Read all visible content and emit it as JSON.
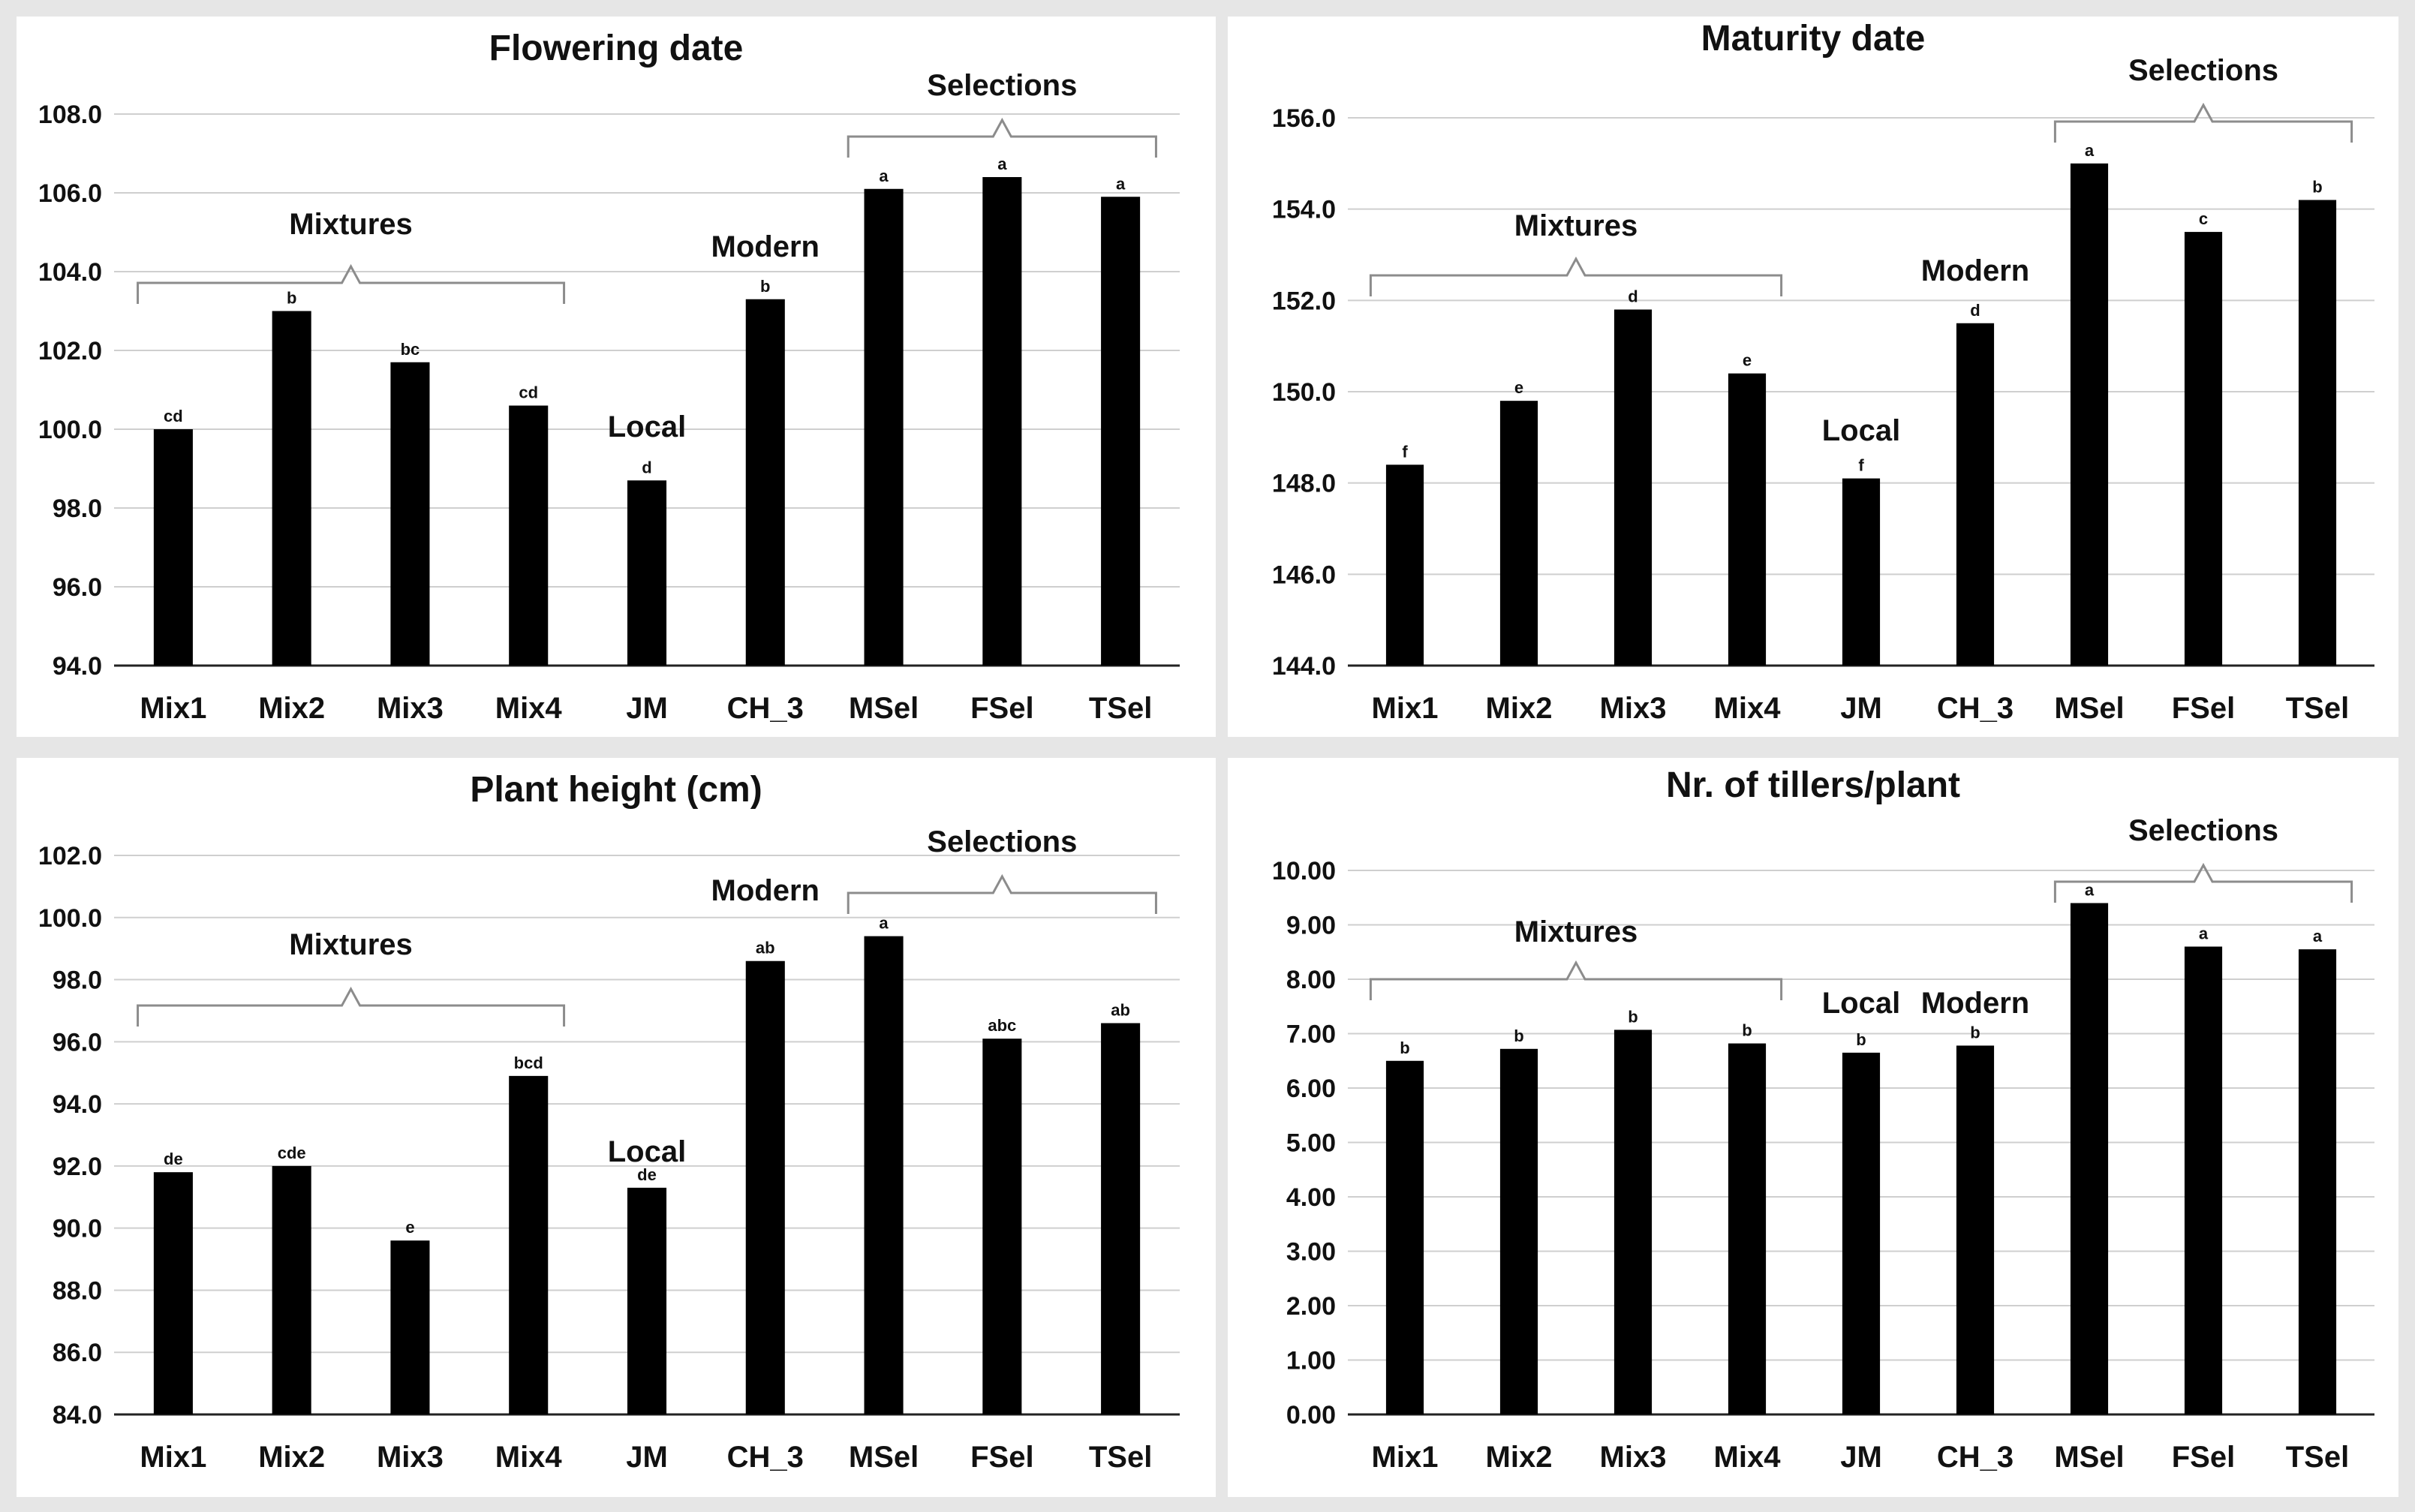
{
  "chart_data": [
    {
      "type": "bar",
      "title": "Flowering date",
      "categories": [
        "Mix1",
        "Mix2",
        "Mix3",
        "Mix4",
        "JM",
        "CH_3",
        "MSel",
        "FSel",
        "TSel"
      ],
      "values": [
        100.0,
        103.0,
        101.7,
        100.6,
        98.7,
        103.3,
        106.1,
        106.4,
        105.9
      ],
      "significance": [
        "cd",
        "b",
        "bc",
        "cd",
        "d",
        "b",
        "a",
        "a",
        "a"
      ],
      "ylim": [
        94.0,
        108.0
      ],
      "ytick_step": 2.0,
      "ytick_decimals": 1,
      "groups": [
        {
          "label": "Mixtures",
          "from": 0,
          "to": 3,
          "brace": true
        },
        {
          "label": "Local",
          "from": 4,
          "to": 4,
          "brace": false
        },
        {
          "label": "Modern",
          "from": 5,
          "to": 5,
          "brace": false
        },
        {
          "label": "Selections",
          "from": 6,
          "to": 8,
          "brace": true
        }
      ],
      "xlabel": "",
      "ylabel": ""
    },
    {
      "type": "bar",
      "title": "Maturity date",
      "categories": [
        "Mix1",
        "Mix2",
        "Mix3",
        "Mix4",
        "JM",
        "CH_3",
        "MSel",
        "FSel",
        "TSel"
      ],
      "values": [
        148.4,
        149.8,
        151.8,
        150.4,
        148.1,
        151.5,
        155.0,
        153.5,
        154.2
      ],
      "significance": [
        "f",
        "e",
        "d",
        "e",
        "f",
        "d",
        "a",
        "c",
        "b"
      ],
      "ylim": [
        144.0,
        156.0
      ],
      "ytick_step": 2.0,
      "ytick_decimals": 1,
      "groups": [
        {
          "label": "Mixtures",
          "from": 0,
          "to": 3,
          "brace": true
        },
        {
          "label": "Local",
          "from": 4,
          "to": 4,
          "brace": false
        },
        {
          "label": "Modern",
          "from": 5,
          "to": 5,
          "brace": false
        },
        {
          "label": "Selections",
          "from": 6,
          "to": 8,
          "brace": true
        }
      ],
      "xlabel": "",
      "ylabel": ""
    },
    {
      "type": "bar",
      "title": "Plant height (cm)",
      "categories": [
        "Mix1",
        "Mix2",
        "Mix3",
        "Mix4",
        "JM",
        "CH_3",
        "MSel",
        "FSel",
        "TSel"
      ],
      "values": [
        91.8,
        92.0,
        89.6,
        94.9,
        91.3,
        98.6,
        99.4,
        96.1,
        96.6
      ],
      "significance": [
        "de",
        "cde",
        "e",
        "bcd",
        "de",
        "ab",
        "a",
        "abc",
        "ab"
      ],
      "ylim": [
        84.0,
        102.0
      ],
      "ytick_step": 2.0,
      "ytick_decimals": 1,
      "groups": [
        {
          "label": "Mixtures",
          "from": 0,
          "to": 3,
          "brace": true
        },
        {
          "label": "Local",
          "from": 4,
          "to": 4,
          "brace": false
        },
        {
          "label": "Modern",
          "from": 5,
          "to": 5,
          "brace": false
        },
        {
          "label": "Selections",
          "from": 6,
          "to": 8,
          "brace": true
        }
      ],
      "xlabel": "",
      "ylabel": ""
    },
    {
      "type": "bar",
      "title": "Nr. of tillers/plant",
      "categories": [
        "Mix1",
        "Mix2",
        "Mix3",
        "Mix4",
        "JM",
        "CH_3",
        "MSel",
        "FSel",
        "TSel"
      ],
      "values": [
        6.5,
        6.72,
        7.07,
        6.82,
        6.65,
        6.78,
        9.4,
        8.6,
        8.55
      ],
      "significance": [
        "b",
        "b",
        "b",
        "b",
        "b",
        "b",
        "a",
        "a",
        "a"
      ],
      "ylim": [
        0.0,
        10.0
      ],
      "ytick_step": 1.0,
      "ytick_decimals": 2,
      "groups": [
        {
          "label": "Mixtures",
          "from": 0,
          "to": 3,
          "brace": true
        },
        {
          "label": "Local",
          "from": 4,
          "to": 4,
          "brace": false
        },
        {
          "label": "Modern",
          "from": 5,
          "to": 5,
          "brace": false
        },
        {
          "label": "Selections",
          "from": 6,
          "to": 8,
          "brace": true
        }
      ],
      "xlabel": "",
      "ylabel": ""
    }
  ]
}
